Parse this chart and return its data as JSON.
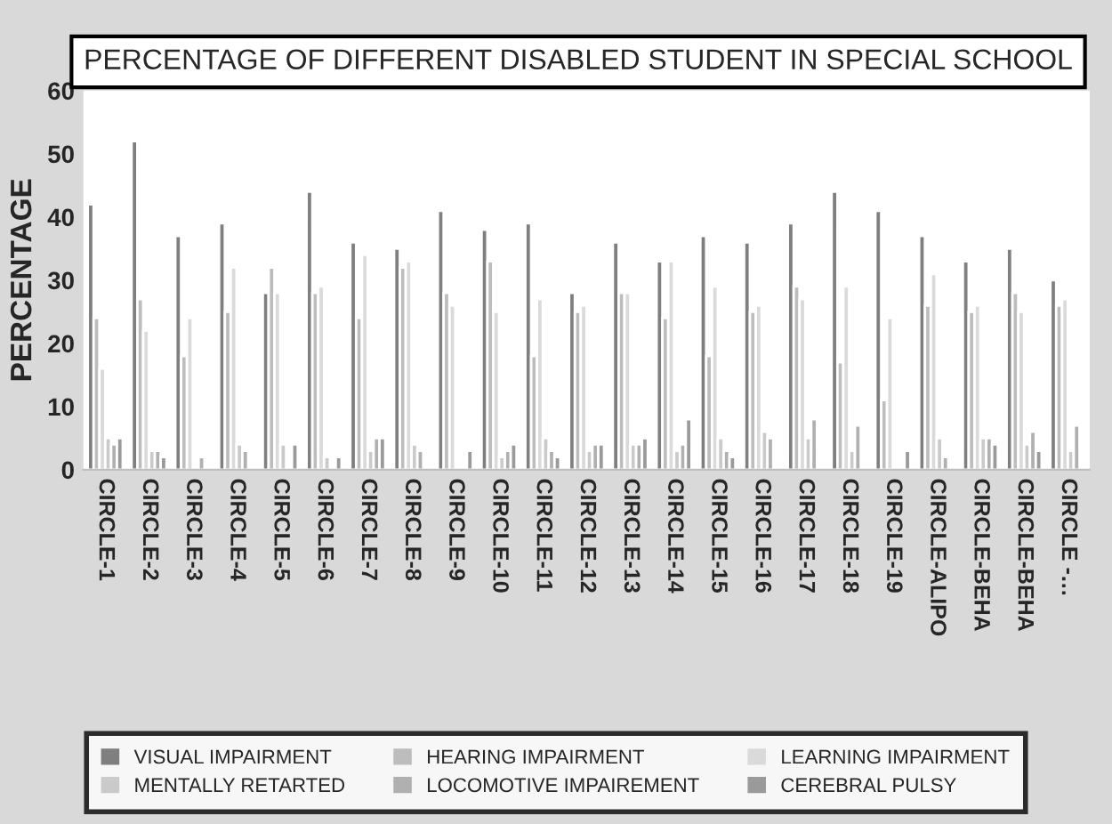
{
  "chart_data": {
    "type": "bar",
    "title": "PERCENTAGE OF DIFFERENT DISABLED STUDENT IN SPECIAL SCHOOL",
    "ylabel": "PERCENTAGE",
    "categories": [
      "CIRCLE-1",
      "CIRCLE-2",
      "CIRCLE-3",
      "CIRCLE-4",
      "CIRCLE-5",
      "CIRCLE-6",
      "CIRCLE-7",
      "CIRCLE-8",
      "CIRCLE-9",
      "CIRCLE-10",
      "CIRCLE-11",
      "CIRCLE-12",
      "CIRCLE-13",
      "CIRCLE-14",
      "CIRCLE-15",
      "CIRCLE-16",
      "CIRCLE-17",
      "CIRCLE-18",
      "CIRCLE-19",
      "CIRCLE-ALIPO",
      "CIRCLE-BEHA",
      "CIRCLE-BEHA",
      "CIRCLE -…"
    ],
    "series": [
      {
        "name": "VISUAL IMPAIRMENT",
        "color": "#7f7f7f",
        "values": [
          42,
          52,
          37,
          39,
          28,
          44,
          36,
          35,
          41,
          38,
          39,
          28,
          36,
          33,
          37,
          36,
          39,
          44,
          41,
          37,
          33,
          35,
          30
        ]
      },
      {
        "name": "HEARING IMPAIRMENT",
        "color": "#bdbdbd",
        "values": [
          24,
          27,
          18,
          25,
          32,
          28,
          24,
          32,
          28,
          33,
          18,
          25,
          28,
          24,
          18,
          25,
          29,
          17,
          11,
          26,
          25,
          28,
          26
        ]
      },
      {
        "name": "LEARNING IMPAIRMENT",
        "color": "#dadada",
        "values": [
          16,
          22,
          24,
          32,
          28,
          29,
          34,
          33,
          26,
          25,
          27,
          26,
          28,
          33,
          29,
          26,
          27,
          29,
          24,
          31,
          26,
          25,
          27
        ]
      },
      {
        "name": "MENTALLY RETARTED",
        "color": "#cacaca",
        "values": [
          5,
          3,
          0,
          4,
          4,
          2,
          3,
          4,
          0,
          2,
          5,
          3,
          4,
          3,
          5,
          6,
          5,
          3,
          0,
          5,
          5,
          4,
          3
        ]
      },
      {
        "name": "LOCOMOTIVE IMPAIREMENT",
        "color": "#b0b0b0",
        "values": [
          4,
          3,
          2,
          3,
          0,
          0,
          5,
          3,
          0,
          3,
          3,
          4,
          4,
          4,
          3,
          5,
          8,
          7,
          0,
          2,
          5,
          6,
          7
        ]
      },
      {
        "name": "CEREBRAL PULSY",
        "color": "#9a9a9a",
        "values": [
          5,
          2,
          0,
          0,
          4,
          2,
          5,
          0,
          3,
          4,
          2,
          4,
          5,
          8,
          2,
          0,
          0,
          0,
          3,
          0,
          4,
          3,
          0
        ]
      }
    ],
    "ylim": [
      0,
      60
    ],
    "yticks": [
      0,
      10,
      20,
      30,
      40,
      50,
      60
    ],
    "grid": false,
    "legend": "bottom"
  }
}
